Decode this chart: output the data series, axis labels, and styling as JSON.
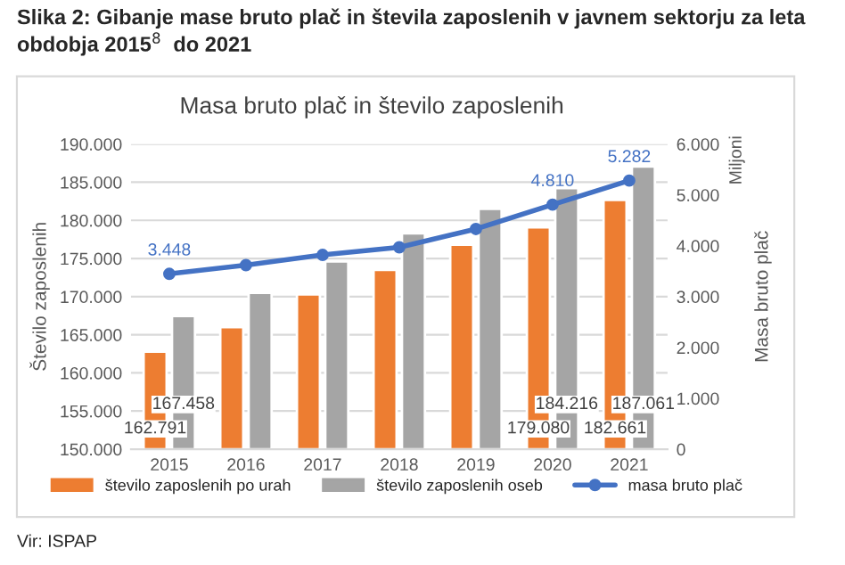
{
  "chart_data": {
    "type": "bar",
    "title": "Slika 2: Gibanje mase bruto plač in števila zaposlenih v javnem sektorju za leta obdobja 2015$^{8}$  do 2021",
    "subtitle": "Masa bruto plač in število zaposlenih",
    "ylabel": "Število zaposlenih",
    "y2label": "Masa bruto plač",
    "annotations": [
      "Miljoni",
      "Vir: ISPAP"
    ],
    "categories": [
      "2015",
      "2016",
      "2017",
      "2018",
      "2019",
      "2020",
      "2021"
    ],
    "series": [
      {
        "name": "število zaposlenih po urah",
        "color": "#ed7d31",
        "values": [
          162791,
          166000,
          170300,
          173500,
          176800,
          179080,
          182661
        ],
        "value_labels": [
          "162.791",
          null,
          null,
          null,
          null,
          "179.080",
          "182.661"
        ]
      },
      {
        "name": "število zaposlenih oseb",
        "color": "#a5a5a5",
        "values": [
          167458,
          170500,
          174600,
          178300,
          181500,
          184216,
          187061
        ],
        "value_labels": [
          "167.458",
          null,
          null,
          null,
          null,
          "184.216",
          "187.061"
        ]
      },
      {
        "name": "masa bruto plač",
        "type": "line",
        "axis": "y2",
        "color": "#4472c4",
        "values": [
          3448,
          3620,
          3820,
          3970,
          4330,
          4810,
          5282
        ],
        "value_labels": [
          "3.448",
          null,
          null,
          null,
          null,
          "4.810",
          "5.282"
        ]
      }
    ],
    "ylim": [
      150000,
      190000
    ],
    "yticks": [
      {
        "value": 150000,
        "label": "150.000"
      },
      {
        "value": 155000,
        "label": "155.000"
      },
      {
        "value": 160000,
        "label": "160.000"
      },
      {
        "value": 165000,
        "label": "165.000"
      },
      {
        "value": 170000,
        "label": "170.000"
      },
      {
        "value": 175000,
        "label": "175.000"
      },
      {
        "value": 180000,
        "label": "180.000"
      },
      {
        "value": 185000,
        "label": "185.000"
      },
      {
        "value": 190000,
        "label": "190.000"
      }
    ],
    "y2lim": [
      0,
      6000
    ],
    "y2ticks": [
      0,
      {
        "value": 1000,
        "label": "1.000"
      },
      {
        "value": 2000,
        "label": "2.000"
      },
      {
        "value": 3000,
        "label": "3.000"
      },
      {
        "value": 4000,
        "label": "4.000"
      },
      {
        "value": 5000,
        "label": "5.000"
      },
      {
        "value": 6000,
        "label": "6.000"
      }
    ],
    "grid": "y",
    "legend": "bottom",
    "marker": "circle",
    "line_style": "solid"
  }
}
